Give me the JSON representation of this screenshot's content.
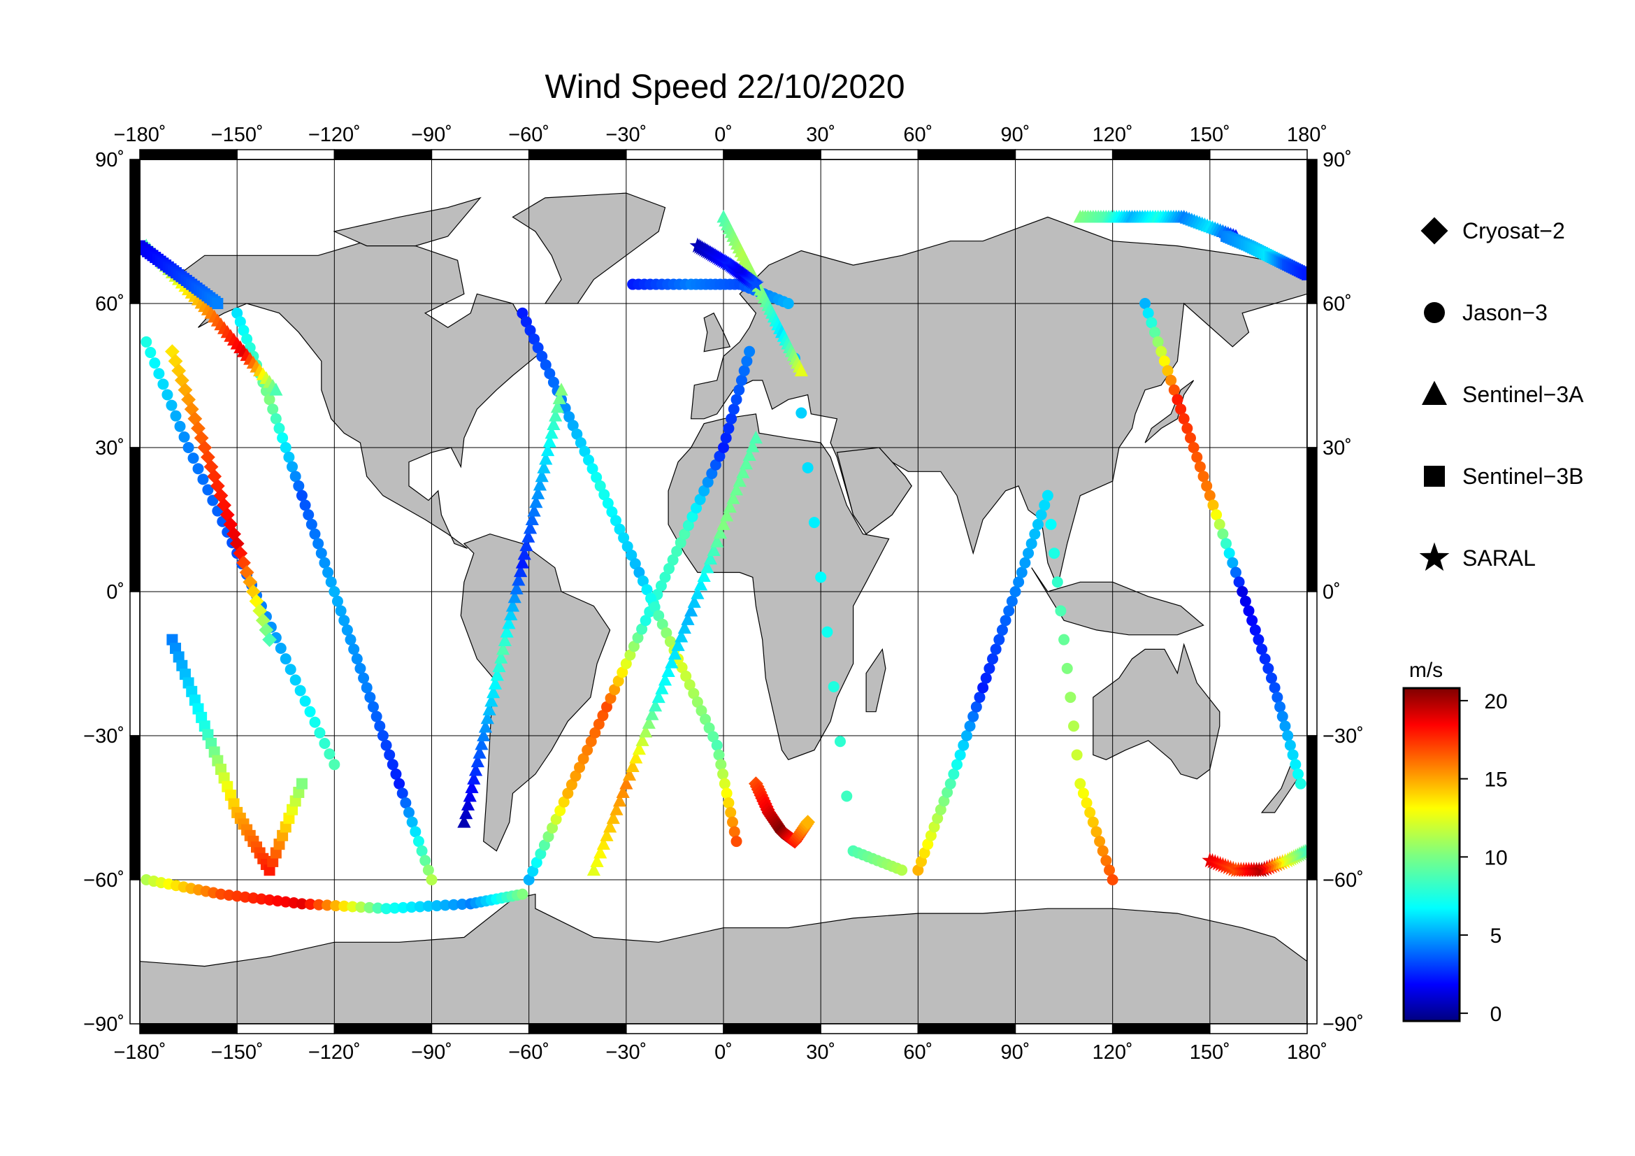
{
  "title": "Wind Speed 22/10/2020",
  "map": {
    "projection": "equirectangular",
    "lon_range": [
      -180,
      180
    ],
    "lat_range": [
      -90,
      90
    ],
    "grid_step_deg": 30,
    "land_color": "#bdbdbd",
    "ocean_color": "#ffffff",
    "grid": true,
    "lon_ticks": [
      "−180˚",
      "−150˚",
      "−120˚",
      "−90˚",
      "−60˚",
      "−30˚",
      "0˚",
      "30˚",
      "60˚",
      "90˚",
      "120˚",
      "150˚",
      "180˚"
    ],
    "lat_ticks": [
      "90˚",
      "60˚",
      "30˚",
      "0˚",
      "−30˚",
      "−60˚",
      "−90˚"
    ]
  },
  "legend": {
    "items": [
      {
        "label": "Cryosat−2",
        "symbol": "diamond"
      },
      {
        "label": "Jason−3",
        "symbol": "circle"
      },
      {
        "label": "Sentinel−3A",
        "symbol": "triangle"
      },
      {
        "label": "Sentinel−3B",
        "symbol": "square"
      },
      {
        "label": "SARAL",
        "symbol": "star"
      }
    ]
  },
  "colorbar": {
    "unit": "m/s",
    "range": [
      -0.5,
      20.8
    ],
    "ticks": [
      "20",
      "15",
      "10",
      "5",
      "0"
    ],
    "colormap": "jet"
  },
  "chart_data": {
    "type": "scatter",
    "title": "Wind Speed 22/10/2020",
    "xlabel": "",
    "ylabel": "",
    "xlim": [
      -180,
      180
    ],
    "ylim": [
      -90,
      90
    ],
    "color_variable": "wind speed (m/s)",
    "color_range": [
      0,
      20
    ],
    "tracks": [
      {
        "sat": "Jason-3",
        "lon": [
          -178,
          -155,
          -130,
          -104,
          -78,
          -62
        ],
        "lat": [
          -60,
          -63,
          -65,
          -66,
          -65,
          -63
        ],
        "ws": [
          11,
          16,
          18,
          8,
          5,
          10
        ]
      },
      {
        "sat": "Jason-3",
        "lon": [
          -178,
          -165,
          -150,
          -135,
          -120
        ],
        "lat": [
          52,
          30,
          8,
          -14,
          -36
        ],
        "ws": [
          8,
          5,
          4,
          6,
          9
        ]
      },
      {
        "sat": "Jason-3",
        "lon": [
          -150,
          -140,
          -130,
          -120,
          -110,
          -100,
          -90
        ],
        "lat": [
          58,
          40,
          20,
          0,
          -20,
          -40,
          -60
        ],
        "ws": [
          7,
          10,
          4,
          6,
          5,
          3,
          11
        ]
      },
      {
        "sat": "Jason-3",
        "lon": [
          -60,
          -48,
          -36,
          -24,
          -12,
          0,
          8
        ],
        "lat": [
          -60,
          -42,
          -24,
          -6,
          12,
          30,
          50
        ],
        "ws": [
          6,
          14,
          16,
          8,
          9,
          3,
          5
        ]
      },
      {
        "sat": "Jason-3",
        "lon": [
          -62,
          -50,
          -38,
          -26,
          -14,
          -2,
          4
        ],
        "lat": [
          58,
          40,
          22,
          4,
          -14,
          -32,
          -52
        ],
        "ws": [
          3,
          5,
          8,
          6,
          12,
          9,
          16
        ]
      },
      {
        "sat": "Jason-3",
        "lon": [
          -28,
          -10,
          5,
          20,
          40,
          55
        ],
        "lat": [
          64,
          64,
          64,
          60,
          -54,
          -58
        ],
        "ws": [
          3,
          5,
          4,
          6,
          9,
          11
        ]
      },
      {
        "sat": "Jason-3",
        "lon": [
          60,
          70,
          80,
          90,
          100,
          110,
          120
        ],
        "lat": [
          -58,
          -40,
          -20,
          0,
          20,
          -40,
          -60
        ],
        "ws": [
          14,
          9,
          3,
          5,
          7,
          12,
          16
        ]
      },
      {
        "sat": "Jason-3",
        "lon": [
          130,
          140,
          150,
          160,
          170,
          178
        ],
        "lat": [
          60,
          40,
          20,
          0,
          -20,
          -40
        ],
        "ws": [
          6,
          17,
          15,
          2,
          4,
          8
        ]
      },
      {
        "sat": "Sentinel-3A",
        "lon": [
          -178,
          -168,
          -158,
          -148,
          -138
        ],
        "lat": [
          72,
          65,
          58,
          50,
          42
        ],
        "ws": [
          9,
          12,
          15,
          18,
          9
        ]
      },
      {
        "sat": "Sentinel-3A",
        "lon": [
          -80,
          -74,
          -68,
          -62,
          -56,
          -50
        ],
        "lat": [
          -48,
          -30,
          -12,
          6,
          24,
          42
        ],
        "ws": [
          1,
          5,
          9,
          3,
          6,
          10
        ]
      },
      {
        "sat": "Sentinel-3A",
        "lon": [
          0,
          6,
          12,
          18,
          24
        ],
        "lat": [
          78,
          70,
          62,
          54,
          46
        ],
        "ws": [
          9,
          11,
          10,
          7,
          12
        ]
      },
      {
        "sat": "Sentinel-3A",
        "lon": [
          110,
          118,
          126,
          134,
          142,
          150,
          158
        ],
        "lat": [
          78,
          78,
          78,
          78,
          78,
          76,
          74
        ],
        "ws": [
          10,
          9,
          6,
          8,
          5,
          7,
          3
        ]
      },
      {
        "sat": "Sentinel-3A",
        "lon": [
          -40,
          -30,
          -20,
          -10,
          0,
          10
        ],
        "lat": [
          -58,
          -40,
          -22,
          -4,
          14,
          32
        ],
        "ws": [
          12,
          15,
          8,
          6,
          10,
          9
        ]
      },
      {
        "sat": "Sentinel-3B",
        "lon": [
          -180,
          -172,
          -164,
          -156
        ],
        "lat": [
          72,
          68,
          64,
          60
        ],
        "ws": [
          2,
          3,
          4,
          5
        ]
      },
      {
        "sat": "Sentinel-3B",
        "lon": [
          155,
          162,
          168,
          174,
          180
        ],
        "lat": [
          74,
          72,
          70,
          68,
          66
        ],
        "ws": [
          5,
          6,
          7,
          4,
          3
        ]
      },
      {
        "sat": "Sentinel-3B",
        "lon": [
          -170,
          -160,
          -150,
          -140,
          -130
        ],
        "lat": [
          -10,
          -28,
          -46,
          -58,
          -40
        ],
        "ws": [
          5,
          8,
          14,
          17,
          10
        ]
      },
      {
        "sat": "Cryosat-2",
        "lon": [
          -170,
          -160,
          -150,
          -140
        ],
        "lat": [
          50,
          30,
          10,
          -10
        ],
        "ws": [
          13,
          16,
          18,
          9
        ]
      },
      {
        "sat": "Cryosat-2",
        "lon": [
          10,
          14,
          18,
          22,
          26
        ],
        "lat": [
          -40,
          -46,
          -50,
          -52,
          -48
        ],
        "ws": [
          16,
          18,
          20,
          17,
          14
        ]
      },
      {
        "sat": "SARAL",
        "lon": [
          -8,
          -3,
          2,
          6,
          10
        ],
        "lat": [
          72,
          70,
          68,
          66,
          64
        ],
        "ws": [
          1,
          2,
          3,
          2,
          4
        ]
      },
      {
        "sat": "SARAL",
        "lon": [
          150,
          158,
          166,
          174,
          180
        ],
        "lat": [
          -56,
          -58,
          -58,
          -56,
          -54
        ],
        "ws": [
          18,
          16,
          19,
          12,
          9
        ]
      }
    ]
  }
}
